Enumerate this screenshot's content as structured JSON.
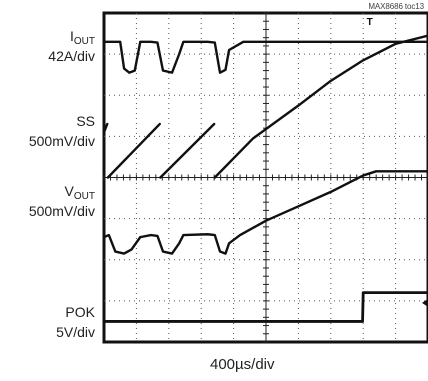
{
  "figure_id": "MAX8686 toc13",
  "chart_data": {
    "type": "line",
    "title": "",
    "xlabel": "400µs/div",
    "x_units_per_div": 400,
    "x_unit": "µs",
    "x_range_div": [
      0,
      10
    ],
    "y_range_div": [
      0,
      8
    ],
    "grid": true,
    "trigger_marker": "T",
    "channels": [
      {
        "name": "IOUT",
        "label_main": "I",
        "label_sub": "OUT",
        "scale": "42A/div",
        "color": "#111111",
        "x": [
          0,
          0.5,
          0.62,
          0.78,
          0.95,
          1.12,
          1.45,
          1.65,
          1.82,
          2.1,
          2.32,
          2.45,
          3.2,
          3.42,
          3.58,
          3.75,
          3.86,
          4.3,
          5,
          6,
          7,
          8,
          9,
          10
        ],
        "y": [
          7.3,
          7.3,
          6.65,
          6.55,
          6.6,
          7.3,
          7.3,
          7.28,
          6.6,
          6.55,
          7.0,
          7.3,
          7.3,
          7.28,
          6.55,
          6.62,
          7.1,
          7.3,
          7.3,
          7.3,
          7.3,
          7.3,
          7.3,
          7.3
        ]
      },
      {
        "name": "SS",
        "label_main": "SS",
        "label_sub": "",
        "scale": "500mV/div",
        "color": "#111111",
        "x": [
          0,
          0.1,
          0.12,
          1.72,
          1.74,
          3.4,
          3.42,
          4.6,
          6,
          7,
          8,
          9,
          10
        ],
        "y": [
          5.1,
          5.3,
          4.0,
          5.3,
          4.0,
          5.3,
          4.0,
          4.95,
          5.75,
          6.35,
          6.85,
          7.25,
          7.45
        ]
      },
      {
        "name": "VOUT",
        "label_main": "V",
        "label_sub": "OUT",
        "scale": "500mV/div",
        "color": "#111111",
        "x": [
          0,
          0.15,
          0.35,
          0.62,
          0.85,
          1.12,
          1.45,
          1.65,
          1.82,
          2.1,
          2.32,
          2.45,
          3.2,
          3.42,
          3.58,
          3.75,
          3.86,
          4.2,
          5,
          6,
          7,
          7.5,
          8,
          8.4,
          9,
          10
        ],
        "y": [
          2.55,
          2.6,
          2.2,
          2.15,
          2.25,
          2.55,
          2.6,
          2.58,
          2.2,
          2.15,
          2.4,
          2.6,
          2.62,
          2.6,
          2.2,
          2.15,
          2.4,
          2.6,
          2.95,
          3.3,
          3.65,
          3.85,
          4.05,
          4.15,
          4.15,
          4.15
        ]
      },
      {
        "name": "POK",
        "label_main": "POK",
        "label_sub": "",
        "scale": "5V/div",
        "color": "#111111",
        "x": [
          0,
          7.98,
          8.0,
          10
        ],
        "y": [
          0.5,
          0.5,
          1.2,
          1.2
        ]
      }
    ]
  }
}
